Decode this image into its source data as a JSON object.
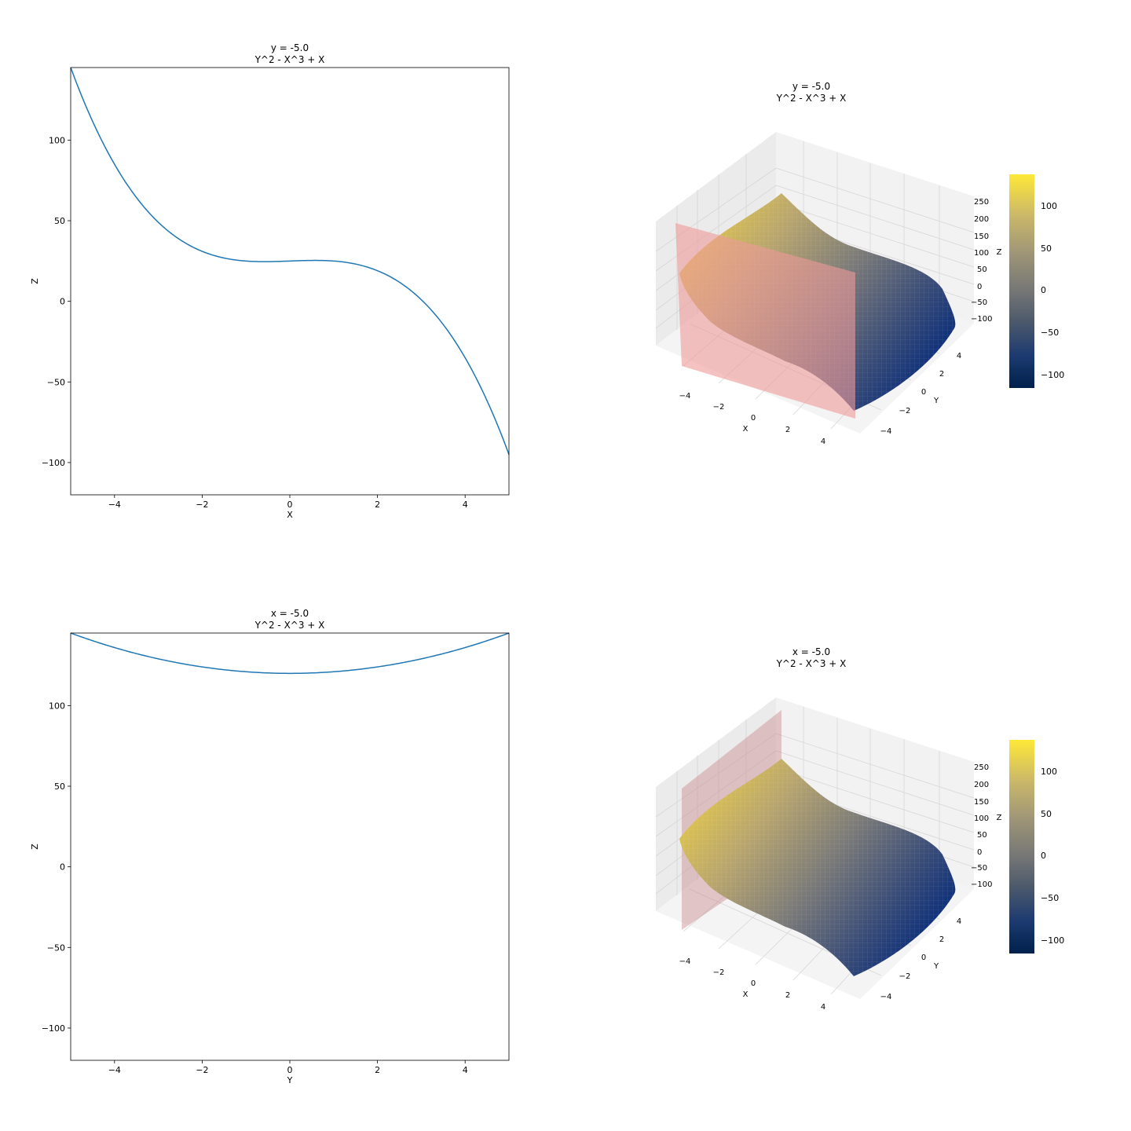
{
  "chart_data": [
    {
      "type": "line",
      "title": [
        "y = -5.0",
        "Y^2 - X^3 + X"
      ],
      "xlabel": "X",
      "ylabel": "Z",
      "xlim": [
        -5,
        5
      ],
      "ylim": [
        -120,
        145
      ],
      "xticks": [
        -4,
        -2,
        0,
        2,
        4
      ],
      "yticks": [
        -100,
        -50,
        0,
        50,
        100
      ],
      "series": [
        {
          "formula": "25 - x^3 + x",
          "color": "#1f77b4",
          "x": [
            -5,
            -4.5,
            -4,
            -3.5,
            -3,
            -2.5,
            -2,
            -1.5,
            -1,
            -0.5,
            0,
            0.5,
            1,
            1.5,
            2,
            2.5,
            3,
            3.5,
            4,
            4.5,
            5
          ],
          "y": [
            145,
            111.6,
            85,
            64.4,
            49,
            38.1,
            31,
            26.9,
            25,
            24.6,
            25,
            25.4,
            25,
            23.1,
            19,
            11.9,
            1,
            -14.4,
            -35,
            -61.6,
            -95
          ]
        }
      ]
    },
    {
      "type": "surface3d",
      "title": [
        "y = -5.0",
        "Y^2 - X^3 + X"
      ],
      "formula": "y^2 - x^3 + x",
      "xlabel": "X",
      "ylabel": "Y",
      "zlabel": "Z",
      "xticks": [
        -4,
        -2,
        0,
        2,
        4
      ],
      "yticks": [
        -4,
        -2,
        0,
        2,
        4
      ],
      "zticks": [
        -100,
        -50,
        0,
        50,
        100,
        150,
        200,
        250
      ],
      "slice_plane": {
        "axis": "y",
        "value": -5.0,
        "color": "#ee9999"
      },
      "colormap": "cividis",
      "colorbar": {
        "min": -120,
        "max": 145,
        "ticks": [
          -100,
          -50,
          0,
          50,
          100
        ]
      }
    },
    {
      "type": "line",
      "title": [
        "x = -5.0",
        "Y^2 - X^3 + X"
      ],
      "xlabel": "Y",
      "ylabel": "Z",
      "xlim": [
        -5,
        5
      ],
      "ylim": [
        -120,
        145
      ],
      "xticks": [
        -4,
        -2,
        0,
        2,
        4
      ],
      "yticks": [
        -100,
        -50,
        0,
        50,
        100
      ],
      "series": [
        {
          "formula": "y^2 + 120",
          "color": "#1f77b4",
          "x": [
            -5,
            -4.5,
            -4,
            -3.5,
            -3,
            -2.5,
            -2,
            -1.5,
            -1,
            -0.5,
            0,
            0.5,
            1,
            1.5,
            2,
            2.5,
            3,
            3.5,
            4,
            4.5,
            5
          ],
          "y": [
            145,
            140.25,
            136,
            132.25,
            129,
            126.25,
            124,
            122.25,
            121,
            120.25,
            120,
            120.25,
            121,
            122.25,
            124,
            126.25,
            129,
            132.25,
            136,
            140.25,
            145
          ]
        }
      ]
    },
    {
      "type": "surface3d",
      "title": [
        "x = -5.0",
        "Y^2 - X^3 + X"
      ],
      "formula": "y^2 - x^3 + x",
      "xlabel": "X",
      "ylabel": "Y",
      "zlabel": "Z",
      "xticks": [
        -4,
        -2,
        0,
        2,
        4
      ],
      "yticks": [
        -4,
        -2,
        0,
        2,
        4
      ],
      "zticks": [
        -100,
        -50,
        0,
        50,
        100,
        150,
        200,
        250
      ],
      "slice_plane": {
        "axis": "x",
        "value": -5.0,
        "color": "#c98a8e"
      },
      "colormap": "cividis",
      "colorbar": {
        "min": -120,
        "max": 145,
        "ticks": [
          -100,
          -50,
          0,
          50,
          100
        ]
      }
    }
  ]
}
